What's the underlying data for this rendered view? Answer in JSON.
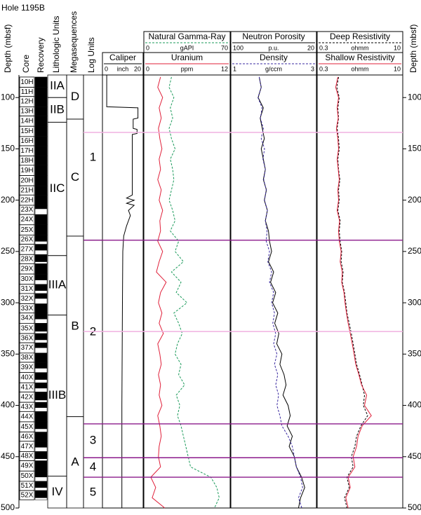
{
  "title": "Hole 1195B",
  "column_headers": {
    "depth": "Depth (mbsf)",
    "core": "Core",
    "recovery": "Recovery",
    "lithologic_units": "Lithologic Units",
    "megasequences": "Megasequences",
    "log_units": "Log Units"
  },
  "chart_data": {
    "type": "well-log",
    "ylim": [
      78,
      500
    ],
    "yticks": [
      100,
      150,
      200,
      250,
      300,
      350,
      400,
      450,
      500
    ],
    "depth": [
      80,
      90,
      100,
      110,
      120,
      130,
      140,
      150,
      160,
      170,
      180,
      190,
      200,
      210,
      220,
      230,
      240,
      250,
      260,
      270,
      280,
      290,
      300,
      310,
      320,
      330,
      340,
      350,
      360,
      370,
      380,
      390,
      400,
      410,
      420,
      430,
      440,
      450,
      460,
      470,
      480,
      490,
      500
    ],
    "tracks": [
      {
        "series": [
          {
            "name": "Caliper",
            "unit": "inch",
            "color": "#000000",
            "dash": false,
            "log": false,
            "xlim": [
              0,
              20
            ],
            "depth": [
              78,
              109,
              110,
              120,
              121,
              130,
              131,
              135,
              136,
              195,
              198,
              200,
              203,
              205,
              210,
              215,
              220,
              225,
              235,
              250,
              300,
              400,
              450,
              470,
              500
            ],
            "values": [
              1.5,
              1.5,
              18,
              18,
              15.5,
              15.5,
              17.5,
              17.5,
              15,
              15,
              12,
              16,
              12,
              16,
              13,
              14,
              13,
              12,
              10.5,
              10,
              9.8,
              9.5,
              9.5,
              9.5,
              9.5
            ]
          }
        ]
      },
      {
        "series": [
          {
            "name": "Natural Gamma-Ray",
            "unit": "gAPI",
            "color": "#1a9a5a",
            "dash": true,
            "log": false,
            "xlim": [
              0,
              70
            ],
            "values": [
              22,
              20,
              24,
              21,
              23,
              20,
              22,
              25,
              21,
              23,
              24,
              22,
              20,
              23,
              25,
              21,
              28,
              25,
              32,
              22,
              30,
              26,
              35,
              24,
              28,
              31,
              27,
              25,
              30,
              28,
              33,
              26,
              29,
              27,
              30,
              32,
              34,
              36,
              38,
              55,
              60,
              62,
              58
            ]
          },
          {
            "name": "Uranium",
            "unit": "ppm",
            "color": "#e0203a",
            "dash": false,
            "log": false,
            "xlim": [
              0,
              12
            ],
            "values": [
              2.2,
              1.8,
              2.5,
              2,
              2.3,
              1.9,
              2.1,
              2.4,
              2,
              2.2,
              1.8,
              2.3,
              2,
              2.5,
              2.1,
              2.2,
              1.8,
              2.5,
              2,
              1.6,
              3,
              2.2,
              1.9,
              2.4,
              2,
              2.6,
              1.8,
              2.1,
              2.3,
              1.9,
              2.2,
              2,
              2.4,
              1.8,
              2.1,
              2.3,
              2,
              1.9,
              2.2,
              0.8,
              1.5,
              1,
              2.8
            ]
          }
        ]
      },
      {
        "series": [
          {
            "name": "Neutron Porosity",
            "unit": "p.u.",
            "color": "#000000",
            "dash": false,
            "log": false,
            "xlim": [
              100,
              20
            ],
            "values": [
              74,
              72,
              75,
              70,
              73,
              71,
              69,
              72,
              70,
              68,
              70,
              67,
              69,
              66,
              68,
              65,
              64,
              62,
              65,
              60,
              63,
              58,
              61,
              56,
              59,
              55,
              57,
              52,
              54,
              50,
              48,
              51,
              46,
              44,
              47,
              42,
              45,
              40,
              38,
              33,
              30,
              34,
              36
            ]
          },
          {
            "name": "Density",
            "unit": "g/ccm",
            "color": "#3a2aa0",
            "dash": true,
            "log": false,
            "xlim": [
              1,
              3
            ],
            "values": [
              1.65,
              1.7,
              1.62,
              1.72,
              1.68,
              1.75,
              1.7,
              1.78,
              1.74,
              1.8,
              1.76,
              1.82,
              1.78,
              1.85,
              1.8,
              1.84,
              1.82,
              1.9,
              1.86,
              1.95,
              1.9,
              2.0,
              1.95,
              2.02,
              1.98,
              2.05,
              2.0,
              2.08,
              2.02,
              2.1,
              2.05,
              2.12,
              2.08,
              2.15,
              2.2,
              2.35,
              2.45,
              2.5,
              2.55,
              2.65,
              2.7,
              2.6,
              2.68
            ]
          }
        ]
      },
      {
        "series": [
          {
            "name": "Deep Resistivity",
            "unit": "ohmm",
            "color": "#000000",
            "dash": true,
            "log": true,
            "xlim": [
              0.3,
              10
            ],
            "values": [
              0.7,
              0.65,
              0.72,
              0.68,
              0.7,
              0.66,
              0.7,
              0.72,
              0.68,
              0.7,
              0.74,
              0.7,
              0.72,
              0.68,
              0.75,
              0.72,
              0.75,
              0.8,
              0.78,
              0.85,
              0.82,
              0.9,
              0.95,
              1.0,
              1.1,
              1.2,
              1.3,
              1.4,
              1.5,
              1.7,
              1.9,
              2.1,
              2.0,
              2.4,
              1.8,
              1.5,
              1.4,
              1.2,
              1.3,
              1.0,
              1.1,
              0.9,
              1.0
            ]
          },
          {
            "name": "Shallow Resistivity",
            "unit": "ohmm",
            "color": "#e0203a",
            "dash": false,
            "log": true,
            "xlim": [
              0.3,
              10
            ],
            "values": [
              0.68,
              0.62,
              0.7,
              0.66,
              0.69,
              0.64,
              0.68,
              0.7,
              0.66,
              0.69,
              0.72,
              0.68,
              0.7,
              0.66,
              0.73,
              0.7,
              0.72,
              0.78,
              0.75,
              0.82,
              0.8,
              0.88,
              0.92,
              0.98,
              1.05,
              1.15,
              1.25,
              1.35,
              1.45,
              1.65,
              1.85,
              2.3,
              2.1,
              2.8,
              1.9,
              1.6,
              1.5,
              1.3,
              1.4,
              1.05,
              1.15,
              0.95,
              1.05
            ]
          }
        ]
      }
    ],
    "core_names": [
      "10H",
      "11H",
      "12H",
      "13H",
      "14H",
      "15H",
      "16H",
      "17H",
      "18H",
      "19H",
      "20H",
      "21H",
      "22H",
      "23X",
      "24X",
      "25X",
      "26X",
      "27X",
      "28X",
      "29X",
      "30X",
      "31X",
      "32X",
      "33X",
      "34X",
      "35X",
      "36X",
      "37X",
      "38X",
      "39X",
      "40X",
      "41X",
      "42X",
      "43X",
      "44X",
      "45X",
      "46X",
      "47X",
      "48X",
      "49X",
      "50X",
      "51X",
      "52X"
    ],
    "core_tops": [
      80,
      90,
      99,
      109,
      118,
      128,
      138,
      147,
      157,
      166,
      176,
      186,
      195,
      205,
      214,
      224,
      234,
      243,
      253,
      262,
      272,
      282,
      291,
      301,
      310,
      320,
      330,
      339,
      349,
      358,
      368,
      378,
      387,
      397,
      406,
      416,
      426,
      435,
      445,
      454,
      464,
      474,
      483
    ],
    "recovery": [
      100,
      100,
      100,
      100,
      100,
      100,
      100,
      100,
      100,
      100,
      100,
      100,
      100,
      40,
      100,
      100,
      70,
      60,
      80,
      100,
      60,
      70,
      50,
      100,
      60,
      80,
      70,
      50,
      100,
      60,
      70,
      60,
      80,
      60,
      100,
      70,
      100,
      60,
      80,
      100,
      60,
      70,
      80
    ],
    "lithologic_units": [
      {
        "label": "IIA",
        "top": 78,
        "bottom": 100
      },
      {
        "label": "IIB",
        "top": 100,
        "bottom": 124
      },
      {
        "label": "IIC",
        "top": 124,
        "bottom": 254
      },
      {
        "label": "IIIA",
        "top": 254,
        "bottom": 312
      },
      {
        "label": "IIIB",
        "top": 312,
        "bottom": 469
      },
      {
        "label": "IV",
        "top": 469,
        "bottom": 500
      }
    ],
    "megasequences": [
      {
        "label": "D",
        "top": 78,
        "bottom": 121
      },
      {
        "label": "C",
        "top": 121,
        "bottom": 235
      },
      {
        "label": "B",
        "top": 235,
        "bottom": 411
      },
      {
        "label": "A",
        "top": 411,
        "bottom": 500
      }
    ],
    "log_units": [
      {
        "label": "1",
        "top": 78,
        "bottom": 239
      },
      {
        "label": "2",
        "top": 239,
        "bottom": 418
      },
      {
        "label": "3",
        "top": 418,
        "bottom": 451
      },
      {
        "label": "4",
        "top": 451,
        "bottom": 470
      },
      {
        "label": "5",
        "top": 470,
        "bottom": 500
      }
    ],
    "boundaries": [
      {
        "depth": 134,
        "color": "#f0b0e0"
      },
      {
        "depth": 239,
        "color": "#8b1a8b"
      },
      {
        "depth": 328,
        "color": "#f0b0e0"
      },
      {
        "depth": 418,
        "color": "#8b1a8b"
      },
      {
        "depth": 451,
        "color": "#8b1a8b"
      },
      {
        "depth": 470,
        "color": "#8b1a8b"
      }
    ]
  }
}
